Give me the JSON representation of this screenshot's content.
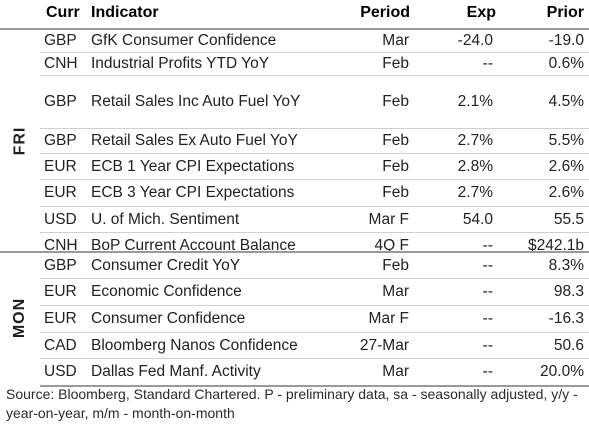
{
  "header": {
    "curr": "Curr",
    "indicator": "Indicator",
    "period": "Period",
    "exp": "Exp",
    "prior": "Prior"
  },
  "groups": [
    {
      "label": "FRI",
      "rows": [
        {
          "curr": "GBP",
          "indicator": "GfK Consumer Confidence",
          "period": "Mar",
          "exp": "-24.0",
          "prior": "-19.0"
        },
        {
          "curr": "CNH",
          "indicator": "Industrial Profits YTD YoY",
          "period": "Feb",
          "exp": "--",
          "prior": "0.6%"
        },
        {
          "curr": "GBP",
          "indicator": "Retail Sales Inc Auto Fuel YoY",
          "period": "Feb",
          "exp": "2.1%",
          "prior": "4.5%"
        },
        {
          "curr": "GBP",
          "indicator": "Retail Sales Ex Auto Fuel YoY",
          "period": "Feb",
          "exp": "2.7%",
          "prior": "5.5%"
        },
        {
          "curr": "EUR",
          "indicator": "ECB 1 Year CPI Expectations",
          "period": "Feb",
          "exp": "2.8%",
          "prior": "2.6%"
        },
        {
          "curr": "EUR",
          "indicator": "ECB 3 Year CPI Expectations",
          "period": "Feb",
          "exp": "2.7%",
          "prior": "2.6%"
        },
        {
          "curr": "USD",
          "indicator": "U. of Mich. Sentiment",
          "period": "Mar F",
          "exp": "54.0",
          "prior": "55.5"
        },
        {
          "curr": "CNH",
          "indicator": "BoP Current Account Balance",
          "period": "4Q F",
          "exp": "--",
          "prior": "$242.1b"
        }
      ]
    },
    {
      "label": "MON",
      "rows": [
        {
          "curr": "GBP",
          "indicator": "Consumer Credit YoY",
          "period": "Feb",
          "exp": "--",
          "prior": "8.3%"
        },
        {
          "curr": "EUR",
          "indicator": "Economic Confidence",
          "period": "Mar",
          "exp": "--",
          "prior": "98.3"
        },
        {
          "curr": "EUR",
          "indicator": "Consumer Confidence",
          "period": "Mar F",
          "exp": "--",
          "prior": "-16.3"
        },
        {
          "curr": "CAD",
          "indicator": "Bloomberg Nanos Confidence",
          "period": "27-Mar",
          "exp": "--",
          "prior": "50.6"
        },
        {
          "curr": "USD",
          "indicator": "Dallas Fed Manf. Activity",
          "period": "Mar",
          "exp": "--",
          "prior": "20.0%"
        }
      ]
    }
  ],
  "footer": {
    "source": "Source: Bloomberg, Standard Chartered. P - preliminary data, sa - seasonally adjusted, y/y - year-on-year, m/m - month-on-month"
  }
}
